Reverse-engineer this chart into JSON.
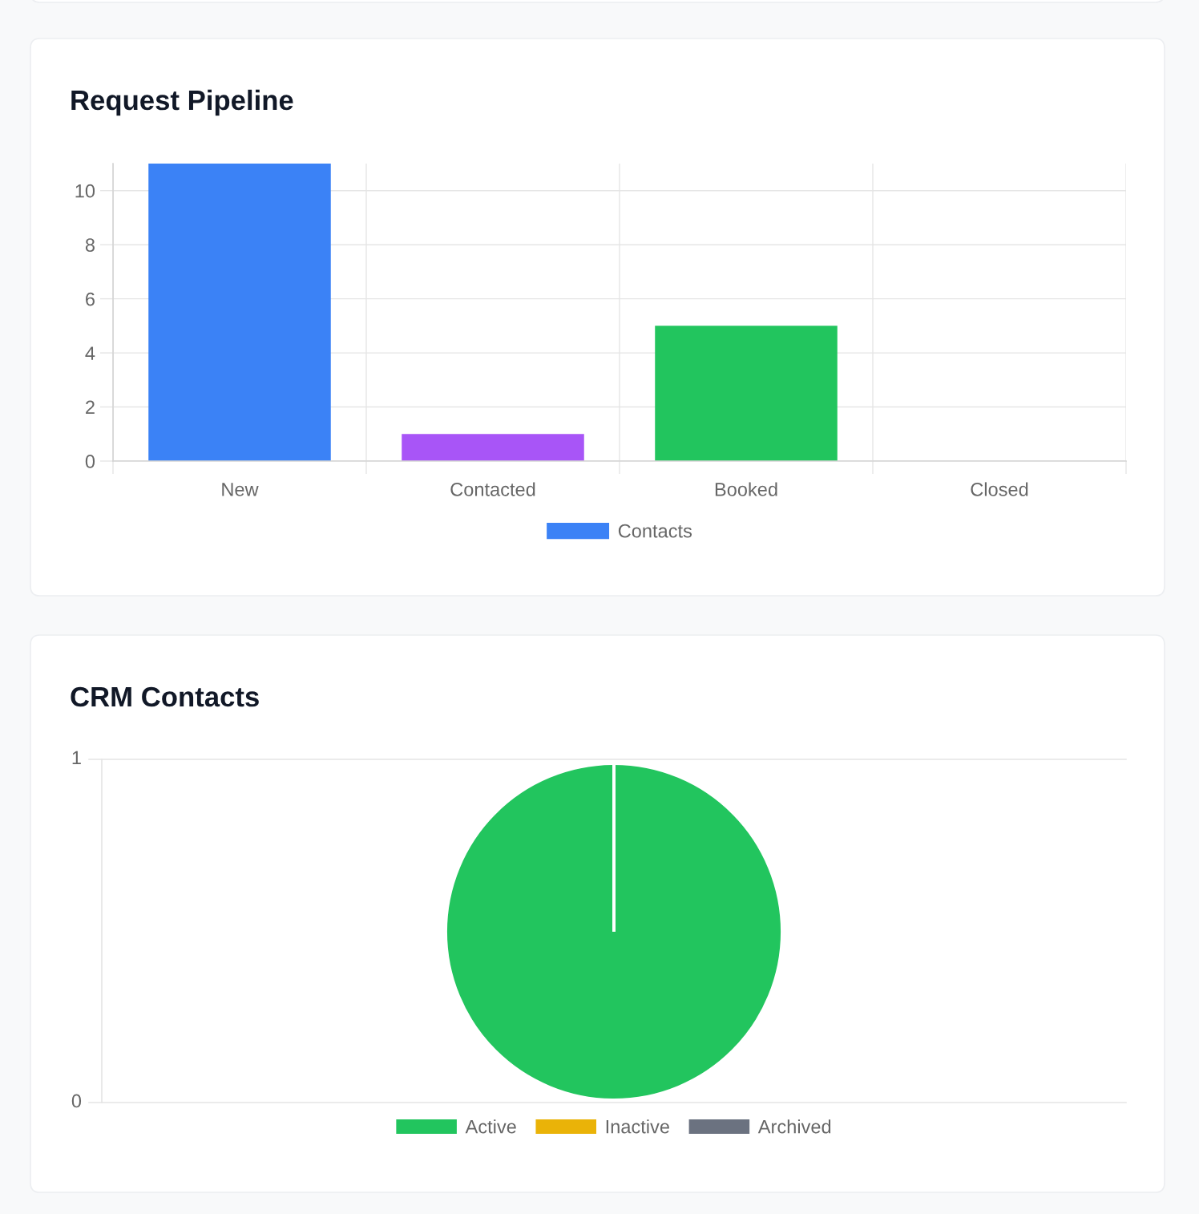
{
  "chart_data": [
    {
      "type": "bar",
      "title": "Request Pipeline",
      "categories": [
        "New",
        "Contacted",
        "Booked",
        "Closed"
      ],
      "series": [
        {
          "name": "Contacts",
          "color": "#3b82f6",
          "colors": [
            "#3b82f6",
            "#a855f7",
            "#22c55e",
            null
          ],
          "values": [
            11,
            1,
            5,
            0
          ]
        }
      ],
      "ylim": [
        0,
        11
      ],
      "yticks": [
        0,
        2,
        4,
        6,
        8,
        10
      ],
      "grid": true,
      "legend": "bottom"
    },
    {
      "type": "pie",
      "title": "CRM Contacts",
      "categories": [
        "Active",
        "Inactive",
        "Archived"
      ],
      "values": [
        100,
        0,
        0
      ],
      "colors": [
        "#22c55e",
        "#eab308",
        "#6b7280"
      ],
      "annotations": [
        "1",
        "0"
      ],
      "legend": "bottom"
    }
  ]
}
